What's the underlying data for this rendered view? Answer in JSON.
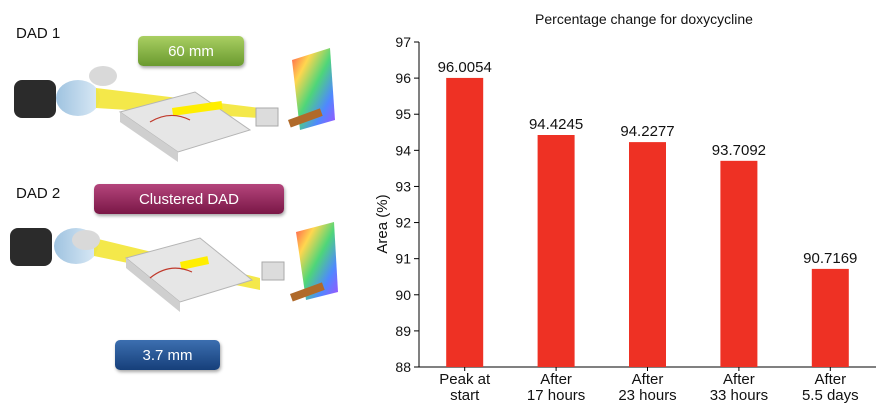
{
  "left_panel": {
    "dad1_label": "DAD 1",
    "dad1_badge": "60 mm",
    "dad2_label": "DAD 2",
    "dad2_badge": "Clustered DAD",
    "dad2_bottom_badge": "3.7 mm",
    "colors": {
      "green": "#7fae3e",
      "maroon": "#9a2a60",
      "blue": "#1f4f8f"
    }
  },
  "chart_data": {
    "type": "bar",
    "title": "Percentage change for doxycycline",
    "ylabel": "Area (%)",
    "xlabel": "",
    "ylim": [
      88,
      97
    ],
    "yticks": [
      88,
      89,
      90,
      91,
      92,
      93,
      94,
      95,
      96,
      97
    ],
    "categories": [
      [
        "Peak at",
        "start"
      ],
      [
        "After",
        "17 hours"
      ],
      [
        "After",
        "23 hours"
      ],
      [
        "After",
        "33 hours"
      ],
      [
        "After",
        "5.5 days"
      ]
    ],
    "values": [
      96.0054,
      94.4245,
      94.2277,
      93.7092,
      90.7169
    ],
    "data_labels": [
      "96.0054",
      "94.4245",
      "94.2277",
      "93.7092",
      "90.7169"
    ],
    "bar_color": "#ee3124",
    "grid": false
  }
}
